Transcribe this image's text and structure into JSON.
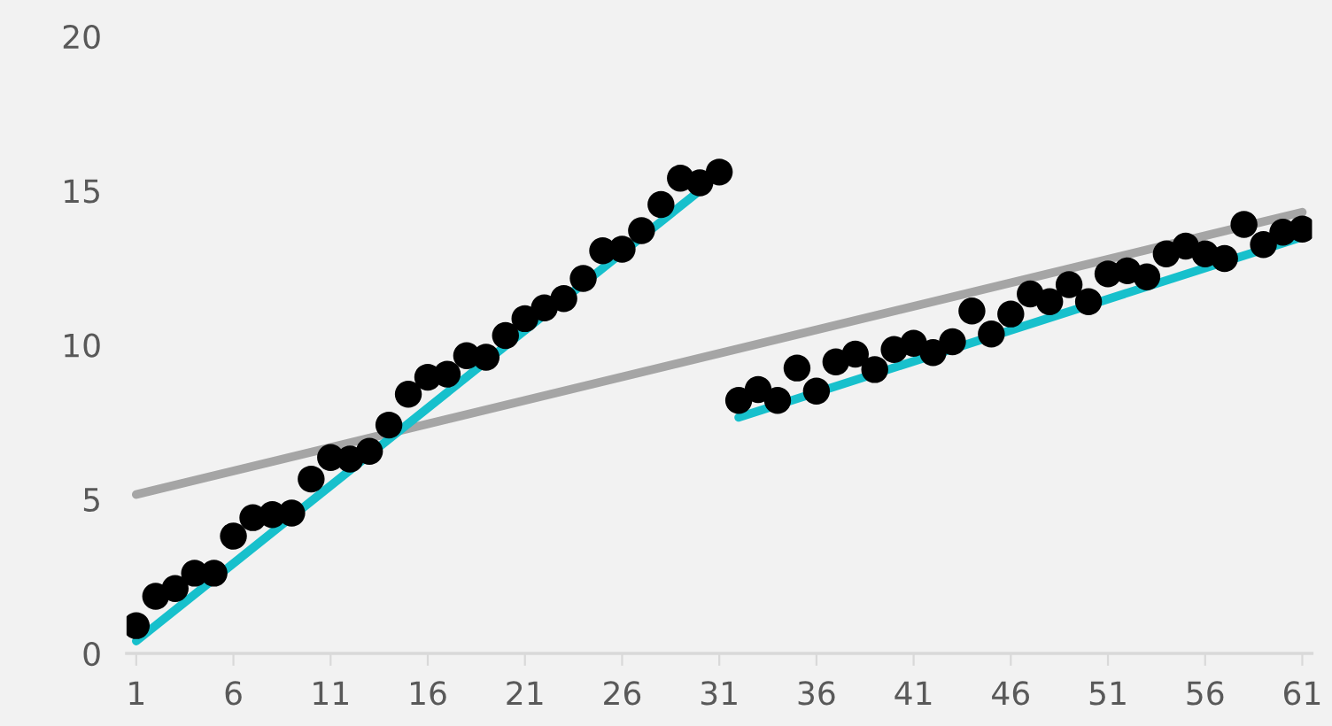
{
  "chart_data": {
    "type": "scatter",
    "xlim": [
      0.5,
      61.5
    ],
    "ylim": [
      0,
      20
    ],
    "xticks": [
      1,
      6,
      11,
      16,
      21,
      26,
      31,
      36,
      41,
      46,
      51,
      56,
      61
    ],
    "yticks": [
      0,
      5,
      10,
      15,
      20
    ],
    "grid": false,
    "legend": false,
    "series": [
      {
        "type": "line",
        "marker": "none",
        "color": "#a5a5a5",
        "x": [
          1,
          61
        ],
        "values": [
          5.15,
          14.3
        ]
      },
      {
        "type": "line",
        "marker": "none",
        "color": "#17c0cc",
        "x": [
          1,
          30
        ],
        "values": [
          0.4,
          15.0
        ]
      },
      {
        "type": "line",
        "marker": "none",
        "color": "#17c0cc",
        "x": [
          32,
          61
        ],
        "values": [
          7.65,
          13.5
        ]
      },
      {
        "marker": "circle",
        "color": "#000000",
        "x": [
          1,
          2,
          3,
          4,
          5,
          6,
          7,
          8,
          9,
          10,
          11,
          12,
          13,
          14,
          15,
          16,
          17,
          18,
          19,
          20,
          21,
          22,
          23,
          24,
          25,
          26,
          27,
          28,
          29,
          30,
          31,
          32,
          33,
          34,
          35,
          36,
          37,
          38,
          39,
          40,
          41,
          42,
          43,
          44,
          45,
          46,
          47,
          48,
          49,
          50,
          51,
          52,
          53,
          54,
          55,
          56,
          57,
          58,
          59,
          60,
          61
        ],
        "values": [
          0.9,
          1.85,
          2.1,
          2.6,
          2.6,
          3.8,
          4.4,
          4.5,
          4.55,
          5.65,
          6.35,
          6.3,
          6.55,
          7.4,
          8.4,
          8.95,
          9.05,
          9.65,
          9.6,
          10.3,
          10.85,
          11.2,
          11.5,
          12.15,
          13.05,
          13.1,
          13.7,
          14.55,
          15.4,
          15.25,
          15.6,
          8.2,
          8.55,
          8.2,
          9.25,
          8.5,
          9.45,
          9.7,
          9.2,
          9.85,
          10.05,
          9.75,
          10.1,
          11.1,
          10.35,
          11.0,
          11.65,
          11.4,
          11.95,
          11.4,
          12.3,
          12.4,
          12.2,
          12.95,
          13.2,
          12.95,
          12.8,
          13.9,
          13.25,
          13.65,
          13.75
        ]
      }
    ]
  }
}
